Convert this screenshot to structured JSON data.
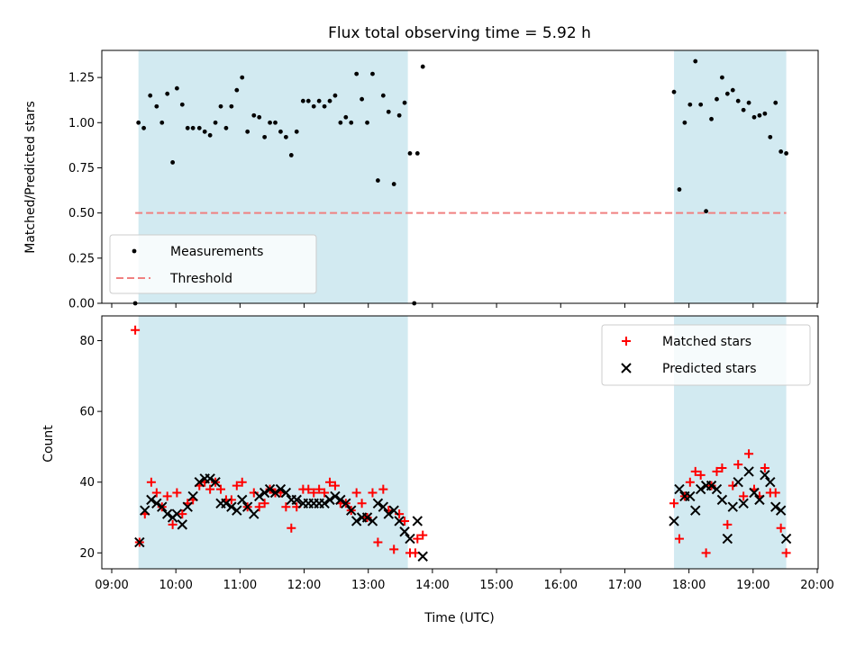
{
  "chart_data": [
    {
      "type": "scatter",
      "title": "Flux total observing time = 5.92 h",
      "xlabel": "",
      "ylabel": "Matched/Predicted stars",
      "xlim": [
        "09:00",
        "20:00"
      ],
      "ylim": [
        0,
        1.4
      ],
      "yticks": [
        0.0,
        0.25,
        0.5,
        0.75,
        1.0,
        1.25
      ],
      "ytick_labels": [
        "0.00",
        "0.25",
        "0.50",
        "0.75",
        "1.00",
        "1.25"
      ],
      "legend_position": "lower-left",
      "shaded_intervals": [
        [
          "09:25",
          "13:37"
        ],
        [
          "17:46",
          "19:31"
        ]
      ],
      "shade_color": "#add8e6",
      "threshold": {
        "name": "Threshold",
        "y": 0.5,
        "x_range": [
          "09:22",
          "19:31"
        ],
        "color": "#f08080"
      },
      "series": [
        {
          "name": "Measurements",
          "color": "#000000",
          "points": [
            [
              "09:22",
              0.0
            ],
            [
              "09:25",
              1.0
            ],
            [
              "09:30",
              0.97
            ],
            [
              "09:36",
              1.15
            ],
            [
              "09:42",
              1.09
            ],
            [
              "09:47",
              1.0
            ],
            [
              "09:52",
              1.16
            ],
            [
              "09:57",
              0.78
            ],
            [
              "10:01",
              1.19
            ],
            [
              "10:06",
              1.1
            ],
            [
              "10:11",
              0.97
            ],
            [
              "10:16",
              0.97
            ],
            [
              "10:22",
              0.97
            ],
            [
              "10:27",
              0.95
            ],
            [
              "10:32",
              0.93
            ],
            [
              "10:37",
              1.0
            ],
            [
              "10:42",
              1.09
            ],
            [
              "10:47",
              0.97
            ],
            [
              "10:52",
              1.09
            ],
            [
              "10:57",
              1.18
            ],
            [
              "11:02",
              1.25
            ],
            [
              "11:07",
              0.95
            ],
            [
              "11:13",
              1.04
            ],
            [
              "11:18",
              1.03
            ],
            [
              "11:23",
              0.92
            ],
            [
              "11:28",
              1.0
            ],
            [
              "11:33",
              1.0
            ],
            [
              "11:38",
              0.95
            ],
            [
              "11:43",
              0.92
            ],
            [
              "11:48",
              0.82
            ],
            [
              "11:53",
              0.95
            ],
            [
              "11:59",
              1.12
            ],
            [
              "12:04",
              1.12
            ],
            [
              "12:09",
              1.09
            ],
            [
              "12:14",
              1.12
            ],
            [
              "12:19",
              1.09
            ],
            [
              "12:24",
              1.12
            ],
            [
              "12:29",
              1.15
            ],
            [
              "12:34",
              1.0
            ],
            [
              "12:39",
              1.03
            ],
            [
              "12:44",
              1.0
            ],
            [
              "12:49",
              1.27
            ],
            [
              "12:54",
              1.13
            ],
            [
              "12:59",
              1.0
            ],
            [
              "13:04",
              1.27
            ],
            [
              "13:09",
              0.68
            ],
            [
              "13:14",
              1.15
            ],
            [
              "13:19",
              1.06
            ],
            [
              "13:24",
              0.66
            ],
            [
              "13:29",
              1.04
            ],
            [
              "13:34",
              1.11
            ],
            [
              "13:39",
              0.83
            ],
            [
              "13:43",
              0.0
            ],
            [
              "13:46",
              0.83
            ],
            [
              "13:51",
              1.31
            ],
            [
              "17:46",
              1.17
            ],
            [
              "17:51",
              0.63
            ],
            [
              "17:56",
              1.0
            ],
            [
              "18:01",
              1.1
            ],
            [
              "18:06",
              1.34
            ],
            [
              "18:11",
              1.1
            ],
            [
              "18:16",
              0.51
            ],
            [
              "18:21",
              1.02
            ],
            [
              "18:26",
              1.13
            ],
            [
              "18:31",
              1.25
            ],
            [
              "18:36",
              1.16
            ],
            [
              "18:41",
              1.18
            ],
            [
              "18:46",
              1.12
            ],
            [
              "18:51",
              1.07
            ],
            [
              "18:56",
              1.11
            ],
            [
              "19:01",
              1.03
            ],
            [
              "19:06",
              1.04
            ],
            [
              "19:11",
              1.05
            ],
            [
              "19:16",
              0.92
            ],
            [
              "19:21",
              1.11
            ],
            [
              "19:26",
              0.84
            ],
            [
              "19:31",
              0.83
            ]
          ]
        }
      ]
    },
    {
      "type": "scatter",
      "title": "",
      "xlabel": "Time (UTC)",
      "ylabel": "Count",
      "xlim": [
        "09:00",
        "20:00"
      ],
      "xticks": [
        "09:00",
        "10:00",
        "11:00",
        "12:00",
        "13:00",
        "14:00",
        "15:00",
        "16:00",
        "17:00",
        "18:00",
        "19:00",
        "20:00"
      ],
      "ylim": [
        15.5,
        87
      ],
      "yticks": [
        20,
        40,
        60,
        80
      ],
      "ytick_labels": [
        "20",
        "40",
        "60",
        "80"
      ],
      "legend_position": "upper-right",
      "shaded_intervals": [
        [
          "09:25",
          "13:37"
        ],
        [
          "17:46",
          "19:31"
        ]
      ],
      "shade_color": "#add8e6",
      "series": [
        {
          "name": "Matched stars",
          "color": "#ff0000",
          "marker": "plus",
          "points": [
            [
              "09:22",
              83
            ],
            [
              "09:26",
              23
            ],
            [
              "09:31",
              31
            ],
            [
              "09:37",
              40
            ],
            [
              "09:42",
              37
            ],
            [
              "09:47",
              33
            ],
            [
              "09:52",
              36
            ],
            [
              "09:57",
              28
            ],
            [
              "10:01",
              37
            ],
            [
              "10:06",
              31
            ],
            [
              "10:11",
              34
            ],
            [
              "10:16",
              35
            ],
            [
              "10:22",
              39
            ],
            [
              "10:27",
              40
            ],
            [
              "10:32",
              38
            ],
            [
              "10:37",
              40
            ],
            [
              "10:42",
              38
            ],
            [
              "10:47",
              35
            ],
            [
              "10:52",
              35
            ],
            [
              "10:57",
              39
            ],
            [
              "11:02",
              40
            ],
            [
              "11:07",
              33
            ],
            [
              "11:13",
              37
            ],
            [
              "11:18",
              33
            ],
            [
              "11:23",
              34
            ],
            [
              "11:28",
              38
            ],
            [
              "11:33",
              37
            ],
            [
              "11:38",
              37
            ],
            [
              "11:43",
              33
            ],
            [
              "11:48",
              27
            ],
            [
              "11:53",
              33
            ],
            [
              "11:59",
              38
            ],
            [
              "12:04",
              38
            ],
            [
              "12:09",
              37
            ],
            [
              "12:14",
              38
            ],
            [
              "12:19",
              37
            ],
            [
              "12:24",
              40
            ],
            [
              "12:29",
              39
            ],
            [
              "12:34",
              34
            ],
            [
              "12:39",
              34
            ],
            [
              "12:44",
              32
            ],
            [
              "12:49",
              37
            ],
            [
              "12:54",
              34
            ],
            [
              "12:59",
              30
            ],
            [
              "13:04",
              37
            ],
            [
              "13:09",
              23
            ],
            [
              "13:14",
              38
            ],
            [
              "13:19",
              32
            ],
            [
              "13:24",
              21
            ],
            [
              "13:29",
              31
            ],
            [
              "13:34",
              29
            ],
            [
              "13:39",
              20
            ],
            [
              "13:44",
              20
            ],
            [
              "13:46",
              24
            ],
            [
              "13:51",
              25
            ],
            [
              "17:46",
              34
            ],
            [
              "17:51",
              24
            ],
            [
              "17:56",
              36
            ],
            [
              "18:01",
              40
            ],
            [
              "18:06",
              43
            ],
            [
              "18:11",
              42
            ],
            [
              "18:16",
              20
            ],
            [
              "18:21",
              39
            ],
            [
              "18:26",
              43
            ],
            [
              "18:31",
              44
            ],
            [
              "18:36",
              28
            ],
            [
              "18:41",
              39
            ],
            [
              "18:46",
              45
            ],
            [
              "18:51",
              36
            ],
            [
              "18:56",
              48
            ],
            [
              "19:01",
              38
            ],
            [
              "19:06",
              36
            ],
            [
              "19:11",
              44
            ],
            [
              "19:16",
              37
            ],
            [
              "19:21",
              37
            ],
            [
              "19:26",
              27
            ],
            [
              "19:31",
              20
            ]
          ]
        },
        {
          "name": "Predicted stars",
          "color": "#000000",
          "marker": "x",
          "points": [
            [
              "09:26",
              23
            ],
            [
              "09:31",
              32
            ],
            [
              "09:37",
              35
            ],
            [
              "09:42",
              34
            ],
            [
              "09:47",
              33
            ],
            [
              "09:52",
              31
            ],
            [
              "09:57",
              30
            ],
            [
              "10:01",
              31
            ],
            [
              "10:06",
              28
            ],
            [
              "10:11",
              33
            ],
            [
              "10:16",
              36
            ],
            [
              "10:22",
              40
            ],
            [
              "10:27",
              41
            ],
            [
              "10:32",
              41
            ],
            [
              "10:37",
              40
            ],
            [
              "10:42",
              34
            ],
            [
              "10:47",
              34
            ],
            [
              "10:52",
              33
            ],
            [
              "10:57",
              32
            ],
            [
              "11:02",
              35
            ],
            [
              "11:07",
              33
            ],
            [
              "11:13",
              31
            ],
            [
              "11:18",
              36
            ],
            [
              "11:23",
              37
            ],
            [
              "11:28",
              38
            ],
            [
              "11:33",
              37
            ],
            [
              "11:38",
              38
            ],
            [
              "11:43",
              37
            ],
            [
              "11:48",
              35
            ],
            [
              "11:53",
              35
            ],
            [
              "11:59",
              34
            ],
            [
              "12:04",
              34
            ],
            [
              "12:09",
              34
            ],
            [
              "12:14",
              34
            ],
            [
              "12:19",
              34
            ],
            [
              "12:24",
              35
            ],
            [
              "12:29",
              36
            ],
            [
              "12:34",
              35
            ],
            [
              "12:39",
              34
            ],
            [
              "12:44",
              32
            ],
            [
              "12:49",
              29
            ],
            [
              "12:54",
              30
            ],
            [
              "12:59",
              30
            ],
            [
              "13:04",
              29
            ],
            [
              "13:09",
              34
            ],
            [
              "13:14",
              33
            ],
            [
              "13:19",
              31
            ],
            [
              "13:24",
              32
            ],
            [
              "13:29",
              29
            ],
            [
              "13:34",
              26
            ],
            [
              "13:39",
              24
            ],
            [
              "13:46",
              29
            ],
            [
              "13:51",
              19
            ],
            [
              "17:46",
              29
            ],
            [
              "17:51",
              38
            ],
            [
              "17:56",
              36
            ],
            [
              "18:01",
              36
            ],
            [
              "18:06",
              32
            ],
            [
              "18:11",
              38
            ],
            [
              "18:16",
              39
            ],
            [
              "18:21",
              39
            ],
            [
              "18:26",
              38
            ],
            [
              "18:31",
              35
            ],
            [
              "18:36",
              24
            ],
            [
              "18:41",
              33
            ],
            [
              "18:46",
              40
            ],
            [
              "18:51",
              34
            ],
            [
              "18:56",
              43
            ],
            [
              "19:01",
              37
            ],
            [
              "19:06",
              35
            ],
            [
              "19:11",
              42
            ],
            [
              "19:16",
              40
            ],
            [
              "19:21",
              33
            ],
            [
              "19:26",
              32
            ],
            [
              "19:31",
              24
            ]
          ]
        }
      ]
    }
  ]
}
